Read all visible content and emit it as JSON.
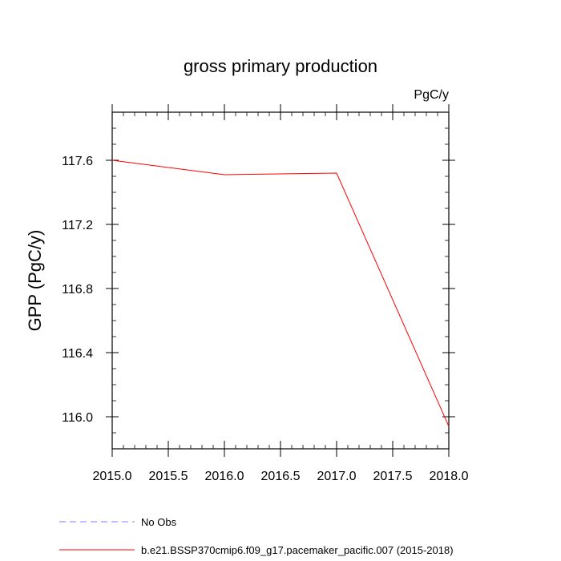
{
  "chart_data": {
    "type": "line",
    "title": "gross primary production",
    "units_label": "PgC/y",
    "xlabel": "",
    "ylabel": "GPP  (PgC/y)",
    "xlim": [
      2015.0,
      2018.0
    ],
    "ylim": [
      115.8,
      117.9
    ],
    "x_ticks": [
      "2015.0",
      "2015.5",
      "2016.0",
      "2016.5",
      "2017.0",
      "2017.5",
      "2018.0"
    ],
    "y_ticks": [
      "117.6",
      "117.2",
      "116.8",
      "116.4",
      "116.0"
    ],
    "grid": false,
    "legend_position": "bottom",
    "series": [
      {
        "name": "b.e21.BSSP370cmip6.f09_g17.pacemaker_pacific.007 (2015-2018)",
        "color": "#ff0000",
        "style": "solid",
        "x": [
          2015.0,
          2016.0,
          2017.0,
          2018.0
        ],
        "y": [
          117.6,
          117.51,
          117.52,
          115.94
        ]
      },
      {
        "name": "No Obs",
        "color": "#8080ff",
        "style": "dashed",
        "x": [],
        "y": []
      }
    ]
  }
}
